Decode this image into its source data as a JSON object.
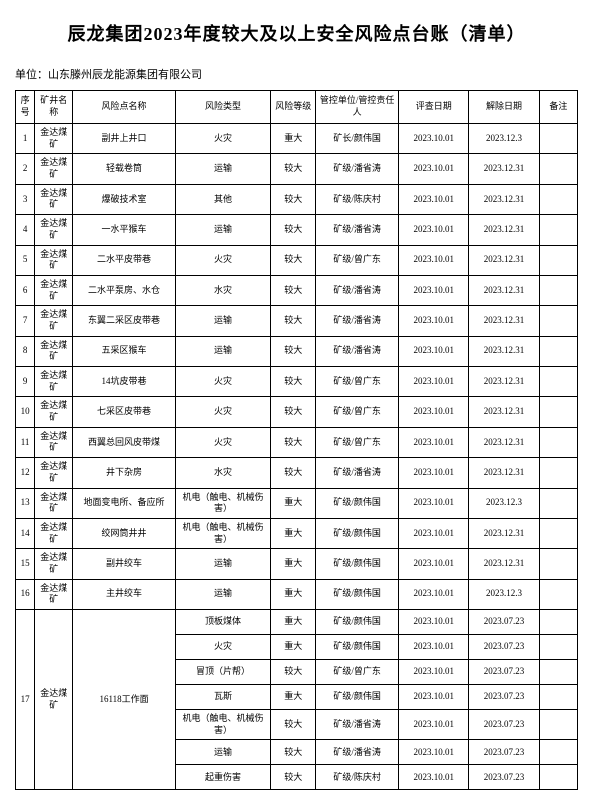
{
  "title": "辰龙集团2023年度较大及以上安全风险点台账（清单）",
  "unit_label": "单位：",
  "unit_name": "山东滕州辰龙能源集团有限公司",
  "headers": {
    "xh": "序号",
    "kj": "矿井名称",
    "mc": "风险点名称",
    "lx": "风险类型",
    "dj": "风险等级",
    "gk": "管控单位/管控责任人",
    "pc": "评查日期",
    "jc": "解除日期",
    "bz": "备注"
  },
  "rows": [
    {
      "xh": "1",
      "kj": "金达煤矿",
      "mc": "副井上井口",
      "lx": "火灾",
      "dj": "重大",
      "gk": "矿长/颜伟国",
      "pc": "2023.10.01",
      "jc": "2023.12.3",
      "bz": ""
    },
    {
      "xh": "2",
      "kj": "金达煤矿",
      "mc": "轻载卷筒",
      "lx": "运输",
      "dj": "较大",
      "gk": "矿级/潘省涛",
      "pc": "2023.10.01",
      "jc": "2023.12.31",
      "bz": ""
    },
    {
      "xh": "3",
      "kj": "金达煤矿",
      "mc": "爆破技术室",
      "lx": "其他",
      "dj": "较大",
      "gk": "矿级/陈庆村",
      "pc": "2023.10.01",
      "jc": "2023.12.31",
      "bz": ""
    },
    {
      "xh": "4",
      "kj": "金达煤矿",
      "mc": "一水平猴车",
      "lx": "运输",
      "dj": "较大",
      "gk": "矿级/潘省涛",
      "pc": "2023.10.01",
      "jc": "2023.12.31",
      "bz": ""
    },
    {
      "xh": "5",
      "kj": "金达煤矿",
      "mc": "二水平皮带巷",
      "lx": "火灾",
      "dj": "较大",
      "gk": "矿级/曾广东",
      "pc": "2023.10.01",
      "jc": "2023.12.31",
      "bz": ""
    },
    {
      "xh": "6",
      "kj": "金达煤矿",
      "mc": "二水平泵房、水仓",
      "lx": "水灾",
      "dj": "较大",
      "gk": "矿级/潘省涛",
      "pc": "2023.10.01",
      "jc": "2023.12.31",
      "bz": ""
    },
    {
      "xh": "7",
      "kj": "金达煤矿",
      "mc": "东翼二采区皮带巷",
      "lx": "运输",
      "dj": "较大",
      "gk": "矿级/潘省涛",
      "pc": "2023.10.01",
      "jc": "2023.12.31",
      "bz": ""
    },
    {
      "xh": "8",
      "kj": "金达煤矿",
      "mc": "五采区猴车",
      "lx": "运输",
      "dj": "较大",
      "gk": "矿级/潘省涛",
      "pc": "2023.10.01",
      "jc": "2023.12.31",
      "bz": ""
    },
    {
      "xh": "9",
      "kj": "金达煤矿",
      "mc": "14坑皮带巷",
      "lx": "火灾",
      "dj": "较大",
      "gk": "矿级/曾广东",
      "pc": "2023.10.01",
      "jc": "2023.12.31",
      "bz": ""
    },
    {
      "xh": "10",
      "kj": "金达煤矿",
      "mc": "七采区皮带巷",
      "lx": "火灾",
      "dj": "较大",
      "gk": "矿级/曾广东",
      "pc": "2023.10.01",
      "jc": "2023.12.31",
      "bz": ""
    },
    {
      "xh": "11",
      "kj": "金达煤矿",
      "mc": "西翼总回风皮带煤",
      "lx": "火灾",
      "dj": "较大",
      "gk": "矿级/曾广东",
      "pc": "2023.10.01",
      "jc": "2023.12.31",
      "bz": ""
    },
    {
      "xh": "12",
      "kj": "金达煤矿",
      "mc": "井下杂房",
      "lx": "水灾",
      "dj": "较大",
      "gk": "矿级/潘省涛",
      "pc": "2023.10.01",
      "jc": "2023.12.31",
      "bz": ""
    },
    {
      "xh": "13",
      "kj": "金达煤矿",
      "mc": "地面变电所、备应所",
      "lx": "机电（触电、机械伤害）",
      "dj": "重大",
      "gk": "矿级/颜伟国",
      "pc": "2023.10.01",
      "jc": "2023.12.3",
      "bz": ""
    },
    {
      "xh": "14",
      "kj": "金达煤矿",
      "mc": "绞网筒井井",
      "lx": "机电（触电、机械伤害）",
      "dj": "重大",
      "gk": "矿级/颜伟国",
      "pc": "2023.10.01",
      "jc": "2023.12.31",
      "bz": ""
    },
    {
      "xh": "15",
      "kj": "金达煤矿",
      "mc": "副井绞车",
      "lx": "运输",
      "dj": "重大",
      "gk": "矿级/颜伟国",
      "pc": "2023.10.01",
      "jc": "2023.12.31",
      "bz": ""
    },
    {
      "xh": "16",
      "kj": "金达煤矿",
      "mc": "主井绞车",
      "lx": "运输",
      "dj": "重大",
      "gk": "矿级/颜伟国",
      "pc": "2023.10.01",
      "jc": "2023.12.3",
      "bz": ""
    }
  ],
  "group17": {
    "xh": "17",
    "kj": "金达煤矿",
    "mc": "16118工作面",
    "sub": [
      {
        "lx": "顶板煤体",
        "dj": "重大",
        "gk": "矿级/颜伟国",
        "pc": "2023.10.01",
        "jc": "2023.07.23",
        "bz": ""
      },
      {
        "lx": "火灾",
        "dj": "重大",
        "gk": "矿级/颜伟国",
        "pc": "2023.10.01",
        "jc": "2023.07.23",
        "bz": ""
      },
      {
        "lx": "冒顶（片帮）",
        "dj": "较大",
        "gk": "矿级/曾广东",
        "pc": "2023.10.01",
        "jc": "2023.07.23",
        "bz": ""
      },
      {
        "lx": "瓦斯",
        "dj": "重大",
        "gk": "矿级/颜伟国",
        "pc": "2023.10.01",
        "jc": "2023.07.23",
        "bz": ""
      },
      {
        "lx": "机电（触电、机械伤害）",
        "dj": "较大",
        "gk": "矿级/潘省涛",
        "pc": "2023.10.01",
        "jc": "2023.07.23",
        "bz": ""
      },
      {
        "lx": "运输",
        "dj": "较大",
        "gk": "矿级/潘省涛",
        "pc": "2023.10.01",
        "jc": "2023.07.23",
        "bz": ""
      },
      {
        "lx": "起重伤害",
        "dj": "较大",
        "gk": "矿级/陈庆村",
        "pc": "2023.10.01",
        "jc": "2023.07.23",
        "bz": ""
      }
    ]
  }
}
